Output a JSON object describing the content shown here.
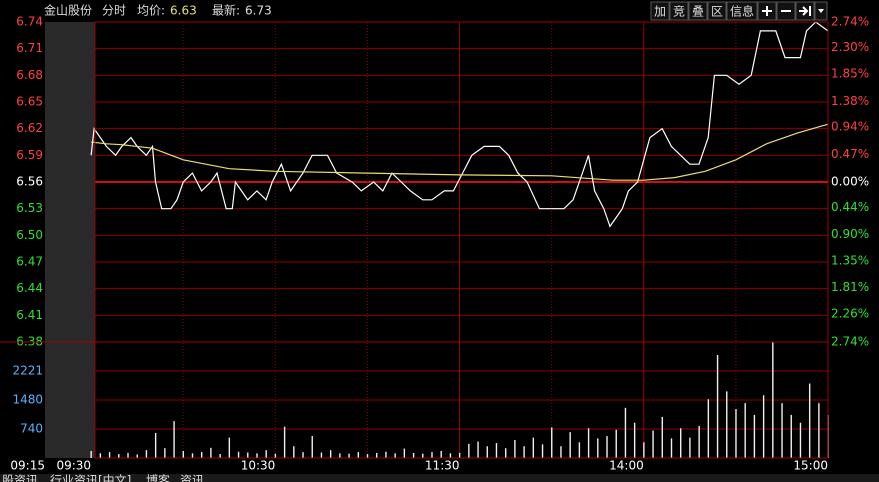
{
  "toolbar": [
    "加",
    "竞",
    "叠",
    "区",
    "信息"
  ],
  "tabs": [
    "股资讯",
    "行业资讯[中文]",
    "博客",
    "资讯"
  ],
  "chart_data": [
    {
      "type": "line",
      "title": "金山股份",
      "subtitle": "分时",
      "avg_label": "均价:",
      "avg_value": 6.63,
      "last_label": "最新:",
      "last_value": 6.73,
      "xlim": [
        -15,
        240
      ],
      "ylim": [
        6.38,
        6.74
      ],
      "base": 6.56,
      "yticks": [
        6.74,
        6.71,
        6.68,
        6.65,
        6.62,
        6.59,
        6.56,
        6.53,
        {
          "value": 6.5,
          "label": "6.50"
        },
        6.47,
        6.44,
        6.41,
        6.38
      ],
      "y2lim": [
        -2.74,
        2.74
      ],
      "y2ticks": [
        {
          "value": 2.74,
          "label": "2.74%"
        },
        {
          "value": 2.3,
          "label": "2.30%"
        },
        {
          "value": 1.85,
          "label": "1.85%"
        },
        {
          "value": 1.38,
          "label": "1.38%"
        },
        {
          "value": 0.94,
          "label": "0.94%"
        },
        {
          "value": 0.47,
          "label": "0.47%"
        },
        {
          "value": 0,
          "label": "0.00%"
        },
        {
          "value": -0.44,
          "label": "0.44%"
        },
        {
          "value": -0.9,
          "label": "0.90%"
        },
        {
          "value": -1.35,
          "label": "1.35%"
        },
        {
          "value": -1.81,
          "label": "1.81%"
        },
        {
          "value": -2.26,
          "label": "2.26%"
        },
        {
          "value": -2.74,
          "label": "2.74%"
        }
      ],
      "xgrid": [
        30,
        60,
        90,
        150,
        210
      ],
      "xgrid_major": [
        120,
        180
      ],
      "series": [
        {
          "color": "#ffffff",
          "x": [
            0,
            1,
            3,
            5,
            8,
            10,
            13,
            15,
            18,
            20,
            21,
            23,
            26,
            28,
            30,
            33,
            36,
            39,
            41,
            44,
            46,
            47,
            49,
            51,
            54,
            57,
            59,
            62,
            65,
            69,
            72,
            77,
            80,
            85,
            88,
            92,
            95,
            98,
            101,
            104,
            108,
            111,
            115,
            118,
            121,
            124,
            128,
            133,
            136,
            139,
            142,
            146,
            151,
            154,
            157,
            160,
            162,
            164,
            167,
            169,
            173,
            175,
            178,
            182,
            186,
            189,
            192,
            195,
            198,
            201,
            203,
            207,
            211,
            215,
            218,
            223,
            226,
            231,
            233,
            236,
            240
          ],
          "values": [
            6.59,
            6.62,
            6.61,
            6.6,
            6.59,
            6.6,
            6.61,
            6.6,
            6.59,
            6.6,
            6.56,
            6.53,
            6.53,
            6.54,
            6.56,
            6.57,
            6.55,
            6.56,
            6.57,
            6.53,
            6.53,
            6.56,
            6.55,
            6.54,
            6.55,
            6.54,
            6.56,
            6.58,
            6.55,
            6.57,
            6.59,
            6.59,
            6.57,
            6.56,
            6.55,
            6.56,
            6.55,
            6.57,
            6.56,
            6.55,
            6.54,
            6.54,
            6.55,
            6.55,
            6.57,
            6.59,
            6.6,
            6.6,
            6.59,
            6.57,
            6.56,
            6.53,
            6.53,
            6.53,
            6.54,
            6.57,
            6.59,
            6.55,
            6.53,
            6.51,
            6.53,
            6.55,
            6.56,
            6.61,
            6.62,
            6.6,
            6.59,
            6.58,
            6.58,
            6.61,
            6.68,
            6.68,
            6.67,
            6.68,
            6.73,
            6.73,
            6.7,
            6.7,
            6.73,
            6.74,
            6.73
          ]
        },
        {
          "color": "#e8e070",
          "x": [
            0,
            5,
            10,
            20,
            30,
            45,
            60,
            90,
            120,
            150,
            170,
            180,
            190,
            200,
            210,
            220,
            230,
            240
          ],
          "values": [
            6.605,
            6.603,
            6.602,
            6.598,
            6.585,
            6.575,
            6.572,
            6.57,
            6.568,
            6.567,
            6.562,
            6.562,
            6.565,
            6.572,
            6.585,
            6.603,
            6.615,
            6.625
          ]
        }
      ]
    },
    {
      "type": "bar",
      "xlim": [
        -15,
        240
      ],
      "ylim": [
        0,
        2961
      ],
      "yticks": [
        740,
        1480,
        2221
      ],
      "color": "#f0f0f0",
      "xticks": [
        {
          "value": -15,
          "label": "09:15"
        },
        {
          "value": 0,
          "label": "09:30"
        },
        {
          "value": 60,
          "label": "10:30"
        },
        {
          "value": 120,
          "label": "11:30"
        },
        {
          "value": 180,
          "label": "14:00"
        },
        {
          "value": 240,
          "label": "15:00"
        }
      ],
      "x": [
        0,
        3,
        6,
        9,
        12,
        15,
        18,
        21,
        24,
        27,
        30,
        33,
        36,
        39,
        42,
        45,
        48,
        51,
        54,
        57,
        60,
        63,
        66,
        69,
        72,
        75,
        78,
        81,
        84,
        87,
        90,
        93,
        96,
        99,
        102,
        105,
        108,
        111,
        114,
        117,
        120,
        123,
        126,
        129,
        132,
        135,
        138,
        141,
        144,
        147,
        150,
        153,
        156,
        159,
        162,
        165,
        168,
        171,
        174,
        177,
        180,
        183,
        186,
        189,
        192,
        195,
        198,
        201,
        204,
        207,
        210,
        213,
        216,
        219,
        222,
        225,
        228,
        231,
        234,
        237,
        240
      ],
      "values": [
        180,
        120,
        150,
        100,
        130,
        90,
        200,
        640,
        250,
        940,
        180,
        120,
        150,
        260,
        100,
        520,
        160,
        140,
        120,
        200,
        110,
        800,
        300,
        150,
        560,
        140,
        200,
        120,
        110,
        150,
        100,
        130,
        160,
        120,
        240,
        130,
        110,
        150,
        180,
        120,
        130,
        360,
        420,
        300,
        380,
        250,
        460,
        300,
        520,
        350,
        780,
        300,
        660,
        400,
        760,
        500,
        560,
        720,
        1280,
        900,
        400,
        700,
        1050,
        500,
        760,
        520,
        820,
        1500,
        2630,
        1700,
        1250,
        1400,
        1100,
        1600,
        2960,
        1400,
        1100,
        900,
        1900,
        1400,
        1100
      ]
    }
  ]
}
